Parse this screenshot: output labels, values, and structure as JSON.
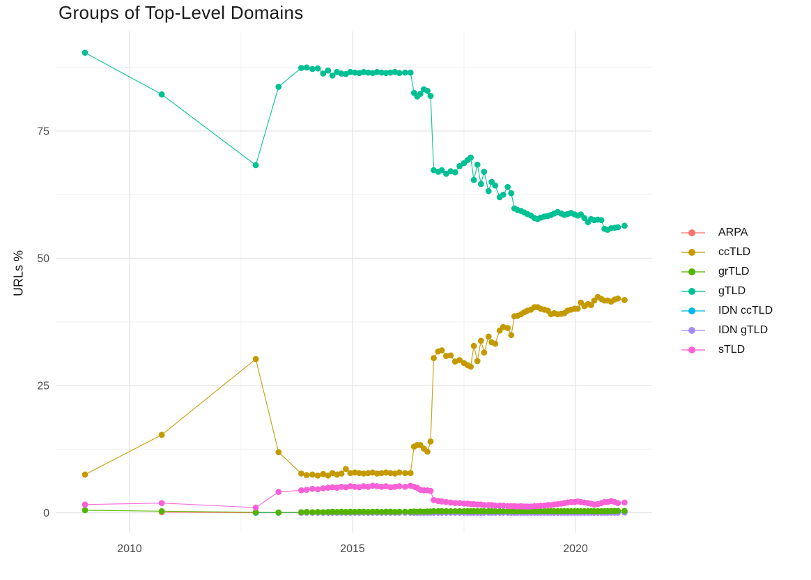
{
  "chart_data": {
    "type": "line",
    "title": "Groups of Top-Level Domains",
    "xlabel": "",
    "ylabel": "URLs %",
    "x_ticks": [
      2010,
      2015,
      2020
    ],
    "x_minor_ticks": [
      2012.5,
      2017.5
    ],
    "y_ticks": [
      0,
      25,
      50,
      75
    ],
    "y_minor_ticks": [
      12.5,
      37.5,
      62.5,
      87.5
    ],
    "xlim": [
      2008.6,
      2021.7
    ],
    "ylim": [
      -1.5,
      94.5
    ],
    "grid": true,
    "legend_position": "right",
    "plot_background": "#FFFFFF",
    "draw_order": [
      "ARPA",
      "IDN ccTLD",
      "IDN gTLD",
      "gTLD",
      "ccTLD",
      "grTLD",
      "sTLD"
    ],
    "x_dense": [
      2013.85,
      2013.97,
      2014.1,
      2014.22,
      2014.34,
      2014.45,
      2014.55,
      2014.65,
      2014.75,
      2014.85,
      2014.95,
      2015.05,
      2015.15,
      2015.25,
      2015.35,
      2015.45,
      2015.55,
      2015.65,
      2015.75,
      2015.85,
      2015.95,
      2016.05,
      2016.18,
      2016.3,
      2016.38,
      2016.45,
      2016.52,
      2016.6,
      2016.68,
      2016.75,
      2016.82,
      2016.92,
      2017.0,
      2017.1,
      2017.2,
      2017.3,
      2017.4,
      2017.5,
      2017.58,
      2017.65,
      2017.72,
      2017.8,
      2017.88,
      2017.95,
      2018.05,
      2018.12,
      2018.2,
      2018.3,
      2018.38,
      2018.48,
      2018.56,
      2018.63,
      2018.7,
      2018.78,
      2018.85,
      2018.92,
      2019.0,
      2019.08,
      2019.15,
      2019.22,
      2019.3,
      2019.38,
      2019.45,
      2019.52,
      2019.6,
      2019.68,
      2019.75,
      2019.82,
      2019.9,
      2019.98,
      2020.05,
      2020.12,
      2020.2,
      2020.28,
      2020.35,
      2020.42,
      2020.5,
      2020.58,
      2020.65,
      2020.72,
      2020.8,
      2020.88,
      2020.95,
      2021.1
    ],
    "series": [
      {
        "name": "ARPA",
        "color": "#F8766D",
        "sparse": [
          [
            2010.72,
            0.1
          ],
          [
            2012.83,
            0.0
          ],
          [
            2013.34,
            0.0
          ],
          [
            2013.85,
            0.0
          ]
        ]
      },
      {
        "name": "ccTLD",
        "color": "#C49A00",
        "sparse": [
          [
            2009.0,
            7.5
          ],
          [
            2010.72,
            15.3
          ],
          [
            2012.83,
            30.2
          ],
          [
            2013.34,
            11.9
          ]
        ],
        "y_dense": [
          7.7,
          7.4,
          7.5,
          7.3,
          7.6,
          7.3,
          7.8,
          7.5,
          7.7,
          8.6,
          7.8,
          7.9,
          7.8,
          7.7,
          7.8,
          7.9,
          7.7,
          7.8,
          7.9,
          7.8,
          7.7,
          7.9,
          7.8,
          7.8,
          13.0,
          13.3,
          13.3,
          12.6,
          12.0,
          14.0,
          30.4,
          31.7,
          31.9,
          30.8,
          30.9,
          29.7,
          30.0,
          29.4,
          29.0,
          28.7,
          32.8,
          29.8,
          33.8,
          31.5,
          34.6,
          33.5,
          33.2,
          35.8,
          36.5,
          36.3,
          34.9,
          38.6,
          38.7,
          39.0,
          39.4,
          39.7,
          39.9,
          40.4,
          40.4,
          40.1,
          39.9,
          39.7,
          39.0,
          39.2,
          39.0,
          39.1,
          39.2,
          39.7,
          39.9,
          40.1,
          40.1,
          41.3,
          40.6,
          41.0,
          40.8,
          41.7,
          42.4,
          42.0,
          41.7,
          41.7,
          41.5,
          41.9,
          42.1,
          41.8
        ]
      },
      {
        "name": "grTLD",
        "color": "#53B400",
        "sparse": [
          [
            2009.0,
            0.5
          ],
          [
            2010.72,
            0.3
          ],
          [
            2012.83,
            0.1
          ],
          [
            2013.34,
            0.05
          ]
        ],
        "y_dense": [
          0.1,
          0.15,
          0.1,
          0.15,
          0.1,
          0.15,
          0.2,
          0.15,
          0.2,
          0.15,
          0.2,
          0.15,
          0.2,
          0.2,
          0.15,
          0.2,
          0.2,
          0.15,
          0.2,
          0.2,
          0.15,
          0.2,
          0.2,
          0.2,
          0.25,
          0.2,
          0.25,
          0.2,
          0.25,
          0.25,
          0.3,
          0.3,
          0.3,
          0.3,
          0.3,
          0.3,
          0.3,
          0.3,
          0.3,
          0.3,
          0.3,
          0.3,
          0.3,
          0.3,
          0.3,
          0.3,
          0.3,
          0.3,
          0.3,
          0.3,
          0.3,
          0.3,
          0.3,
          0.3,
          0.3,
          0.3,
          0.3,
          0.3,
          0.3,
          0.3,
          0.3,
          0.3,
          0.3,
          0.3,
          0.3,
          0.3,
          0.3,
          0.3,
          0.3,
          0.3,
          0.3,
          0.3,
          0.3,
          0.3,
          0.3,
          0.3,
          0.3,
          0.3,
          0.3,
          0.3,
          0.35,
          0.35,
          0.35,
          0.35
        ]
      },
      {
        "name": "gTLD",
        "color": "#00C094",
        "sparse": [
          [
            2009.0,
            90.4
          ],
          [
            2010.72,
            82.2
          ],
          [
            2012.83,
            68.3
          ],
          [
            2013.34,
            83.7
          ]
        ],
        "y_dense": [
          87.4,
          87.5,
          87.2,
          87.3,
          86.3,
          86.9,
          85.9,
          86.6,
          86.3,
          86.2,
          86.6,
          86.5,
          86.4,
          86.6,
          86.5,
          86.4,
          86.6,
          86.5,
          86.4,
          86.5,
          86.6,
          86.4,
          86.5,
          86.5,
          82.5,
          81.8,
          82.3,
          83.2,
          82.9,
          81.9,
          67.3,
          67.0,
          67.3,
          66.6,
          67.1,
          66.9,
          68.1,
          68.7,
          69.3,
          69.8,
          65.4,
          68.4,
          64.6,
          67.0,
          63.2,
          65.0,
          64.3,
          62.0,
          62.5,
          64.0,
          62.8,
          59.8,
          59.5,
          59.3,
          59.0,
          58.7,
          58.4,
          57.9,
          57.7,
          58.0,
          58.2,
          58.3,
          58.5,
          58.8,
          59.1,
          58.8,
          58.5,
          58.7,
          58.9,
          58.6,
          58.4,
          58.6,
          57.9,
          57.1,
          57.7,
          57.5,
          57.6,
          57.5,
          55.8,
          55.6,
          55.9,
          56.0,
          56.1,
          56.4
        ]
      },
      {
        "name": "IDN ccTLD",
        "color": "#00B6EB",
        "sparse": [
          [
            2012.83,
            0.0
          ],
          [
            2013.34,
            0.02
          ]
        ],
        "y_dense": [
          0.05,
          0.05,
          0.05,
          0.05,
          0.05,
          0.05,
          0.05,
          0.05,
          0.05,
          0.05,
          0.05,
          0.05,
          0.05,
          0.05,
          0.05,
          0.05,
          0.05,
          0.05,
          0.05,
          0.05,
          0.05,
          0.05,
          0.05,
          0.05,
          0.05,
          0.05,
          0.05,
          0.05,
          0.05,
          0.05,
          0.05,
          0.05,
          0.05,
          0.05,
          0.05,
          0.05,
          0.05,
          0.05,
          0.05,
          0.05,
          0.05,
          0.05,
          0.05,
          0.05,
          0.05,
          0.05,
          0.05,
          0.05,
          0.05,
          0.05,
          0.05,
          0.05,
          0.05,
          0.05,
          0.05,
          0.05,
          0.05,
          0.05,
          0.05,
          0.05,
          0.05,
          0.05,
          0.05,
          0.05,
          0.05,
          0.05,
          0.05,
          0.05,
          0.05,
          0.05,
          0.05,
          0.05,
          0.05,
          0.05,
          0.05,
          0.05,
          0.05,
          0.05,
          0.05,
          0.05,
          0.05,
          0.05,
          0.05,
          0.05
        ]
      },
      {
        "name": "IDN gTLD",
        "color": "#A58AFF",
        "sparse": [],
        "y_dense": [
          0.0,
          0.0,
          0.0,
          0.0,
          0.0,
          0.0,
          0.0,
          0.0,
          0.0,
          0.0,
          0.0,
          0.0,
          0.0,
          0.0,
          0.0,
          0.0,
          0.0,
          0.0,
          0.0,
          0.0,
          0.0,
          0.0,
          0.0,
          0.0,
          0.0,
          0.0,
          0.0,
          0.0,
          0.0,
          0.0,
          0.0,
          0.0,
          0.0,
          0.0,
          0.0,
          0.0,
          0.0,
          0.0,
          0.0,
          0.0,
          0.0,
          0.0,
          0.0,
          0.0,
          0.0,
          0.0,
          0.0,
          0.0,
          0.0,
          0.0,
          0.0,
          0.0,
          0.0,
          0.0,
          0.0,
          0.0,
          0.0,
          0.0,
          0.0,
          0.0,
          0.0,
          0.0,
          0.0,
          0.0,
          0.0,
          0.0,
          0.0,
          0.0,
          0.0,
          0.0,
          0.0,
          0.0,
          0.0,
          0.0,
          0.0,
          0.0,
          0.0,
          0.0,
          0.0,
          0.0,
          0.0,
          0.0,
          0.0,
          0.05
        ]
      },
      {
        "name": "sTLD",
        "color": "#FB61D7",
        "sparse": [
          [
            2009.0,
            1.6
          ],
          [
            2010.72,
            1.9
          ],
          [
            2012.83,
            1.0
          ],
          [
            2013.34,
            4.1
          ]
        ],
        "y_dense": [
          4.4,
          4.5,
          4.7,
          4.6,
          4.8,
          4.9,
          5.0,
          4.9,
          5.1,
          5.0,
          5.2,
          5.1,
          5.0,
          5.2,
          5.1,
          5.3,
          5.2,
          5.1,
          5.2,
          5.0,
          5.1,
          5.2,
          5.1,
          5.3,
          5.1,
          4.9,
          4.5,
          4.4,
          4.4,
          4.3,
          2.5,
          2.3,
          2.2,
          2.1,
          2.0,
          1.9,
          1.9,
          1.8,
          1.8,
          1.7,
          1.7,
          1.6,
          1.6,
          1.5,
          1.5,
          1.5,
          1.4,
          1.4,
          1.4,
          1.3,
          1.3,
          1.3,
          1.2,
          1.3,
          1.2,
          1.2,
          1.2,
          1.3,
          1.3,
          1.4,
          1.4,
          1.5,
          1.5,
          1.6,
          1.7,
          1.8,
          1.9,
          2.0,
          2.1,
          2.1,
          2.2,
          2.1,
          2.0,
          1.9,
          1.8,
          1.6,
          1.7,
          1.9,
          2.1,
          2.1,
          2.3,
          2.1,
          1.9,
          2.0
        ]
      }
    ]
  }
}
